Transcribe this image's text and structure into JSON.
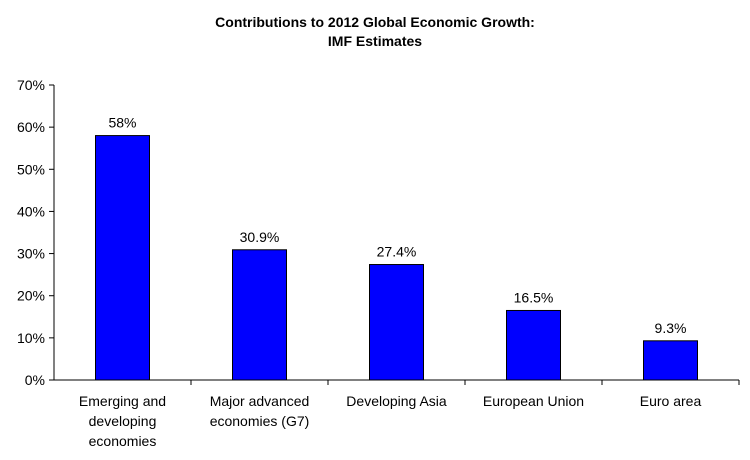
{
  "chart_data": {
    "type": "bar",
    "title_lines": [
      "Contributions to 2012 Global Economic Growth:",
      "IMF Estimates"
    ],
    "categories": [
      [
        "Emerging and",
        "developing",
        "economies"
      ],
      [
        "Major advanced",
        "economies (G7)"
      ],
      [
        "Developing Asia"
      ],
      [
        "European Union"
      ],
      [
        "Euro area"
      ]
    ],
    "values": [
      58,
      30.9,
      27.4,
      16.5,
      9.3
    ],
    "data_labels": [
      "58%",
      "30.9%",
      "27.4%",
      "16.5%",
      "9.3%"
    ],
    "ylim": [
      0,
      70
    ],
    "y_ticks": [
      "0%",
      "10%",
      "20%",
      "30%",
      "40%",
      "50%",
      "60%",
      "70%"
    ],
    "bar_color": "#0000FF",
    "bar_outline": "#000000",
    "grid": false,
    "legend": "none"
  }
}
